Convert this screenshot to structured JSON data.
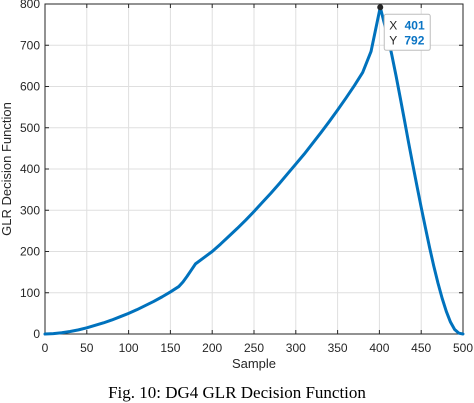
{
  "chart_data": {
    "type": "line",
    "title": "",
    "xlabel": "Sample",
    "ylabel": "GLR Decision Function",
    "xlim": [
      0,
      500
    ],
    "ylim": [
      0,
      800
    ],
    "xticks": [
      0,
      50,
      100,
      150,
      200,
      250,
      300,
      350,
      400,
      450,
      500
    ],
    "yticks": [
      0,
      100,
      200,
      300,
      400,
      500,
      600,
      700,
      800
    ],
    "grid": true,
    "line_color": "#0072BD",
    "series": [
      {
        "x": [
          0,
          10,
          20,
          30,
          40,
          50,
          60,
          70,
          80,
          90,
          100,
          110,
          120,
          130,
          140,
          150,
          160,
          165,
          170,
          175,
          180,
          190,
          200,
          210,
          220,
          230,
          240,
          250,
          260,
          270,
          280,
          290,
          300,
          310,
          320,
          330,
          340,
          350,
          360,
          370,
          380,
          390,
          401,
          405,
          410,
          415,
          420,
          425,
          430,
          435,
          440,
          445,
          450,
          455,
          460,
          465,
          470,
          475,
          480,
          485,
          490,
          495,
          500
        ],
        "y": [
          0,
          1,
          3,
          6,
          10,
          15,
          21,
          27,
          34,
          42,
          50,
          59,
          69,
          79,
          90,
          102,
          115,
          126,
          140,
          155,
          170,
          185,
          200,
          218,
          237,
          256,
          276,
          297,
          319,
          341,
          364,
          388,
          412,
          436,
          462,
          488,
          515,
          543,
          572,
          602,
          634,
          685,
          792,
          760,
          722,
          675,
          625,
          572,
          518,
          463,
          410,
          358,
          307,
          258,
          210,
          165,
          124,
          87,
          55,
          29,
          11,
          2,
          0
        ]
      }
    ],
    "datatip": {
      "x_label": "X",
      "x_value": "401",
      "y_label": "Y",
      "y_value": "792"
    },
    "caption": "Fig. 10: DG4 GLR Decision Function"
  }
}
